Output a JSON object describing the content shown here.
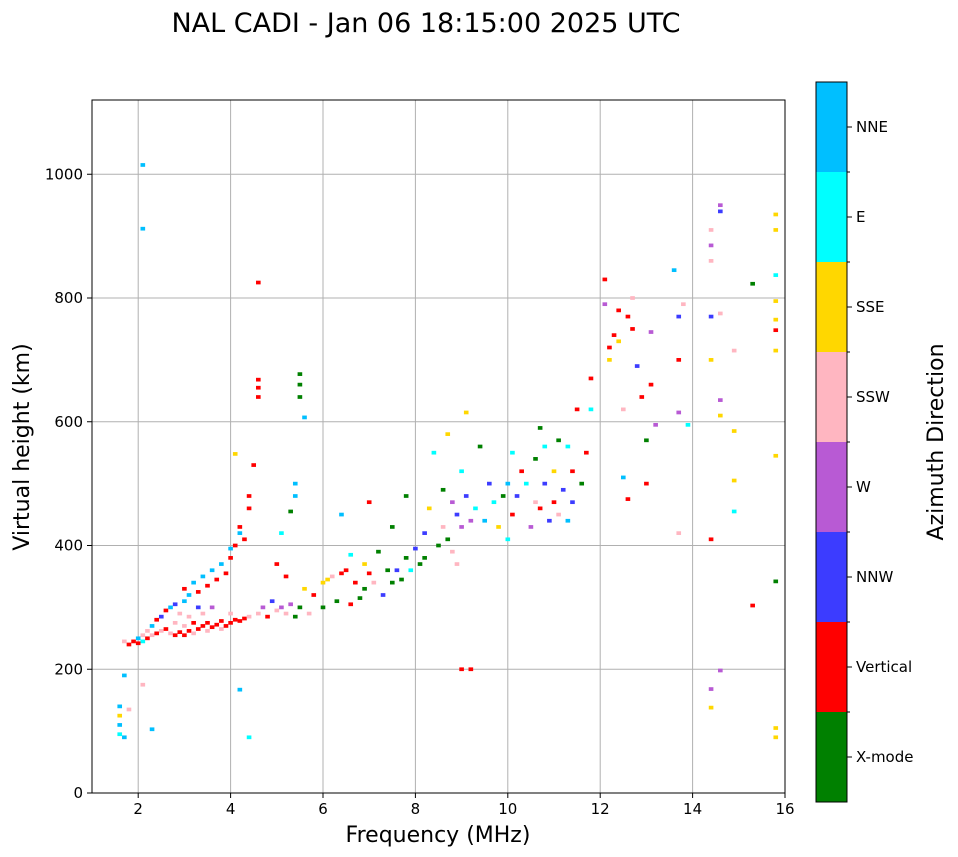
{
  "chart_data": {
    "type": "scatter",
    "title": "NAL CADI - Jan 06 18:15:00 2025 UTC",
    "xlabel": "Frequency (MHz)",
    "ylabel": "Virtual height (km)",
    "xlim": [
      1,
      16
    ],
    "ylim": [
      0,
      1120
    ],
    "xticks": [
      2,
      4,
      6,
      8,
      10,
      12,
      14,
      16
    ],
    "yticks": [
      0,
      200,
      400,
      600,
      800,
      1000
    ],
    "grid": true,
    "colorbar": {
      "label": "Azimuth Direction",
      "categories": [
        "X-mode",
        "Vertical",
        "NNW",
        "W",
        "SSW",
        "SSE",
        "E",
        "NNE"
      ],
      "colors": [
        "#008000",
        "#ff0000",
        "#3c3cff",
        "#b85ad4",
        "#ffb6c1",
        "#ffd700",
        "#00ffff",
        "#00bfff"
      ]
    },
    "points_format": "[frequency MHz, virtual height km, direction index]",
    "points": [
      [
        1.6,
        95,
        6
      ],
      [
        1.6,
        110,
        7
      ],
      [
        1.6,
        125,
        5
      ],
      [
        1.6,
        140,
        7
      ],
      [
        1.7,
        90,
        7
      ],
      [
        1.8,
        135,
        4
      ],
      [
        1.7,
        190,
        7
      ],
      [
        2.1,
        1015,
        7
      ],
      [
        2.1,
        912,
        7
      ],
      [
        2.1,
        175,
        4
      ],
      [
        2.3,
        103,
        7
      ],
      [
        1.7,
        245,
        4
      ],
      [
        1.8,
        240,
        1
      ],
      [
        1.9,
        245,
        1
      ],
      [
        2.0,
        250,
        7
      ],
      [
        2.0,
        242,
        1
      ],
      [
        2.1,
        255,
        4
      ],
      [
        2.1,
        245,
        6
      ],
      [
        2.2,
        250,
        1
      ],
      [
        2.2,
        262,
        4
      ],
      [
        2.3,
        270,
        7
      ],
      [
        2.3,
        255,
        4
      ],
      [
        2.4,
        258,
        1
      ],
      [
        2.4,
        280,
        1
      ],
      [
        2.5,
        262,
        4
      ],
      [
        2.5,
        285,
        2
      ],
      [
        2.6,
        265,
        1
      ],
      [
        2.6,
        295,
        1
      ],
      [
        2.7,
        258,
        4
      ],
      [
        2.7,
        300,
        7
      ],
      [
        2.8,
        255,
        1
      ],
      [
        2.8,
        275,
        4
      ],
      [
        2.8,
        305,
        2
      ],
      [
        2.9,
        260,
        1
      ],
      [
        2.9,
        290,
        4
      ],
      [
        3.0,
        255,
        1
      ],
      [
        3.0,
        270,
        4
      ],
      [
        3.0,
        310,
        7
      ],
      [
        3.0,
        330,
        1
      ],
      [
        3.1,
        262,
        1
      ],
      [
        3.1,
        285,
        4
      ],
      [
        3.1,
        320,
        7
      ],
      [
        3.2,
        258,
        4
      ],
      [
        3.2,
        275,
        1
      ],
      [
        3.2,
        340,
        7
      ],
      [
        3.3,
        265,
        1
      ],
      [
        3.3,
        300,
        2
      ],
      [
        3.3,
        325,
        1
      ],
      [
        3.4,
        270,
        1
      ],
      [
        3.4,
        290,
        4
      ],
      [
        3.4,
        350,
        7
      ],
      [
        3.5,
        262,
        4
      ],
      [
        3.5,
        275,
        1
      ],
      [
        3.5,
        335,
        1
      ],
      [
        3.6,
        268,
        1
      ],
      [
        3.6,
        300,
        3
      ],
      [
        3.6,
        360,
        7
      ],
      [
        3.7,
        272,
        1
      ],
      [
        3.7,
        345,
        1
      ],
      [
        3.8,
        278,
        1
      ],
      [
        3.8,
        265,
        4
      ],
      [
        3.8,
        370,
        7
      ],
      [
        3.9,
        270,
        1
      ],
      [
        3.9,
        355,
        1
      ],
      [
        4.0,
        275,
        1
      ],
      [
        4.0,
        290,
        4
      ],
      [
        4.0,
        380,
        1
      ],
      [
        4.0,
        395,
        7
      ],
      [
        4.1,
        280,
        1
      ],
      [
        4.1,
        400,
        1
      ],
      [
        4.2,
        278,
        1
      ],
      [
        4.2,
        420,
        7
      ],
      [
        4.2,
        430,
        1
      ],
      [
        4.3,
        282,
        1
      ],
      [
        4.3,
        410,
        1
      ],
      [
        4.4,
        480,
        1
      ],
      [
        4.4,
        460,
        1
      ],
      [
        4.4,
        285,
        4
      ],
      [
        4.1,
        548,
        5
      ],
      [
        4.6,
        825,
        1
      ],
      [
        4.6,
        668,
        1
      ],
      [
        4.6,
        655,
        1
      ],
      [
        4.6,
        640,
        1
      ],
      [
        4.5,
        530,
        1
      ],
      [
        4.2,
        167,
        7
      ],
      [
        4.4,
        90,
        6
      ],
      [
        4.6,
        290,
        4
      ],
      [
        4.7,
        300,
        3
      ],
      [
        4.8,
        285,
        1
      ],
      [
        4.9,
        310,
        2
      ],
      [
        5.0,
        295,
        4
      ],
      [
        5.0,
        370,
        1
      ],
      [
        5.1,
        300,
        3
      ],
      [
        5.1,
        420,
        6
      ],
      [
        5.2,
        290,
        4
      ],
      [
        5.2,
        350,
        1
      ],
      [
        5.3,
        305,
        3
      ],
      [
        5.3,
        455,
        0
      ],
      [
        5.4,
        285,
        0
      ],
      [
        5.4,
        480,
        7
      ],
      [
        5.4,
        500,
        7
      ],
      [
        5.5,
        677,
        0
      ],
      [
        5.5,
        660,
        0
      ],
      [
        5.5,
        640,
        0
      ],
      [
        5.6,
        607,
        7
      ],
      [
        5.5,
        300,
        0
      ],
      [
        5.6,
        330,
        5
      ],
      [
        5.7,
        290,
        4
      ],
      [
        5.8,
        320,
        1
      ],
      [
        6.0,
        300,
        0
      ],
      [
        6.0,
        340,
        5
      ],
      [
        6.1,
        345,
        5
      ],
      [
        6.2,
        350,
        4
      ],
      [
        6.3,
        310,
        0
      ],
      [
        6.4,
        450,
        7
      ],
      [
        6.4,
        355,
        1
      ],
      [
        6.5,
        360,
        1
      ],
      [
        6.6,
        305,
        1
      ],
      [
        6.6,
        385,
        6
      ],
      [
        6.7,
        340,
        1
      ],
      [
        6.8,
        315,
        0
      ],
      [
        6.9,
        330,
        0
      ],
      [
        6.9,
        370,
        5
      ],
      [
        7.0,
        355,
        1
      ],
      [
        7.0,
        470,
        1
      ],
      [
        7.1,
        340,
        4
      ],
      [
        7.2,
        390,
        0
      ],
      [
        7.3,
        320,
        2
      ],
      [
        7.4,
        360,
        0
      ],
      [
        7.5,
        340,
        0
      ],
      [
        7.5,
        430,
        0
      ],
      [
        7.6,
        360,
        2
      ],
      [
        7.7,
        345,
        0
      ],
      [
        7.8,
        380,
        0
      ],
      [
        7.8,
        480,
        0
      ],
      [
        7.9,
        360,
        6
      ],
      [
        8.0,
        395,
        2
      ],
      [
        8.1,
        370,
        0
      ],
      [
        8.2,
        380,
        0
      ],
      [
        8.2,
        420,
        2
      ],
      [
        8.3,
        460,
        5
      ],
      [
        8.4,
        550,
        6
      ],
      [
        8.5,
        400,
        0
      ],
      [
        8.6,
        430,
        4
      ],
      [
        8.6,
        490,
        0
      ],
      [
        8.7,
        410,
        0
      ],
      [
        8.7,
        580,
        5
      ],
      [
        8.8,
        470,
        3
      ],
      [
        8.8,
        390,
        4
      ],
      [
        8.9,
        450,
        2
      ],
      [
        8.9,
        370,
        4
      ],
      [
        9.0,
        200,
        1
      ],
      [
        9.0,
        430,
        3
      ],
      [
        9.0,
        520,
        6
      ],
      [
        9.1,
        615,
        5
      ],
      [
        9.1,
        480,
        2
      ],
      [
        9.2,
        200,
        1
      ],
      [
        9.2,
        440,
        3
      ],
      [
        9.3,
        460,
        6
      ],
      [
        9.4,
        560,
        0
      ],
      [
        9.5,
        440,
        7
      ],
      [
        9.6,
        500,
        2
      ],
      [
        9.7,
        470,
        6
      ],
      [
        9.8,
        430,
        5
      ],
      [
        9.9,
        480,
        0
      ],
      [
        10.0,
        500,
        7
      ],
      [
        10.0,
        410,
        6
      ],
      [
        10.1,
        550,
        6
      ],
      [
        10.1,
        450,
        1
      ],
      [
        10.2,
        480,
        2
      ],
      [
        10.3,
        520,
        1
      ],
      [
        10.4,
        500,
        6
      ],
      [
        10.5,
        430,
        3
      ],
      [
        10.6,
        540,
        0
      ],
      [
        10.6,
        470,
        4
      ],
      [
        10.7,
        590,
        0
      ],
      [
        10.7,
        460,
        1
      ],
      [
        10.8,
        560,
        6
      ],
      [
        10.8,
        500,
        2
      ],
      [
        10.9,
        440,
        2
      ],
      [
        11.0,
        520,
        5
      ],
      [
        11.0,
        470,
        1
      ],
      [
        11.1,
        570,
        0
      ],
      [
        11.1,
        450,
        4
      ],
      [
        11.2,
        490,
        2
      ],
      [
        11.3,
        560,
        6
      ],
      [
        11.3,
        440,
        7
      ],
      [
        11.4,
        520,
        1
      ],
      [
        11.4,
        470,
        2
      ],
      [
        11.5,
        620,
        1
      ],
      [
        11.6,
        500,
        0
      ],
      [
        11.7,
        550,
        1
      ],
      [
        11.8,
        620,
        6
      ],
      [
        11.8,
        670,
        1
      ],
      [
        12.1,
        830,
        1
      ],
      [
        12.1,
        790,
        3
      ],
      [
        12.2,
        720,
        1
      ],
      [
        12.2,
        700,
        5
      ],
      [
        12.3,
        740,
        1
      ],
      [
        12.4,
        780,
        1
      ],
      [
        12.4,
        730,
        5
      ],
      [
        12.5,
        620,
        4
      ],
      [
        12.5,
        510,
        7
      ],
      [
        12.6,
        475,
        1
      ],
      [
        12.6,
        770,
        1
      ],
      [
        12.7,
        750,
        1
      ],
      [
        12.7,
        800,
        4
      ],
      [
        12.8,
        690,
        2
      ],
      [
        12.9,
        640,
        1
      ],
      [
        13.0,
        570,
        0
      ],
      [
        13.0,
        500,
        1
      ],
      [
        13.1,
        745,
        3
      ],
      [
        13.1,
        660,
        1
      ],
      [
        13.2,
        595,
        3
      ],
      [
        13.6,
        845,
        7
      ],
      [
        13.7,
        770,
        2
      ],
      [
        13.7,
        700,
        1
      ],
      [
        13.7,
        615,
        3
      ],
      [
        13.7,
        420,
        4
      ],
      [
        13.8,
        790,
        4
      ],
      [
        13.9,
        595,
        6
      ],
      [
        14.4,
        910,
        4
      ],
      [
        14.4,
        885,
        3
      ],
      [
        14.4,
        860,
        4
      ],
      [
        14.4,
        770,
        2
      ],
      [
        14.4,
        700,
        5
      ],
      [
        14.4,
        410,
        1
      ],
      [
        14.4,
        168,
        3
      ],
      [
        14.4,
        138,
        5
      ],
      [
        14.6,
        950,
        3
      ],
      [
        14.6,
        940,
        2
      ],
      [
        14.6,
        775,
        4
      ],
      [
        14.6,
        635,
        3
      ],
      [
        14.6,
        610,
        5
      ],
      [
        14.6,
        198,
        3
      ],
      [
        14.9,
        715,
        4
      ],
      [
        14.9,
        585,
        5
      ],
      [
        14.9,
        505,
        5
      ],
      [
        14.9,
        455,
        6
      ],
      [
        15.3,
        823,
        0
      ],
      [
        15.3,
        303,
        1
      ],
      [
        15.8,
        935,
        5
      ],
      [
        15.8,
        910,
        5
      ],
      [
        15.8,
        837,
        6
      ],
      [
        15.8,
        795,
        5
      ],
      [
        15.8,
        765,
        5
      ],
      [
        15.8,
        748,
        1
      ],
      [
        15.8,
        715,
        5
      ],
      [
        15.8,
        545,
        5
      ],
      [
        15.8,
        342,
        0
      ],
      [
        15.8,
        105,
        5
      ],
      [
        15.8,
        90,
        5
      ]
    ]
  }
}
